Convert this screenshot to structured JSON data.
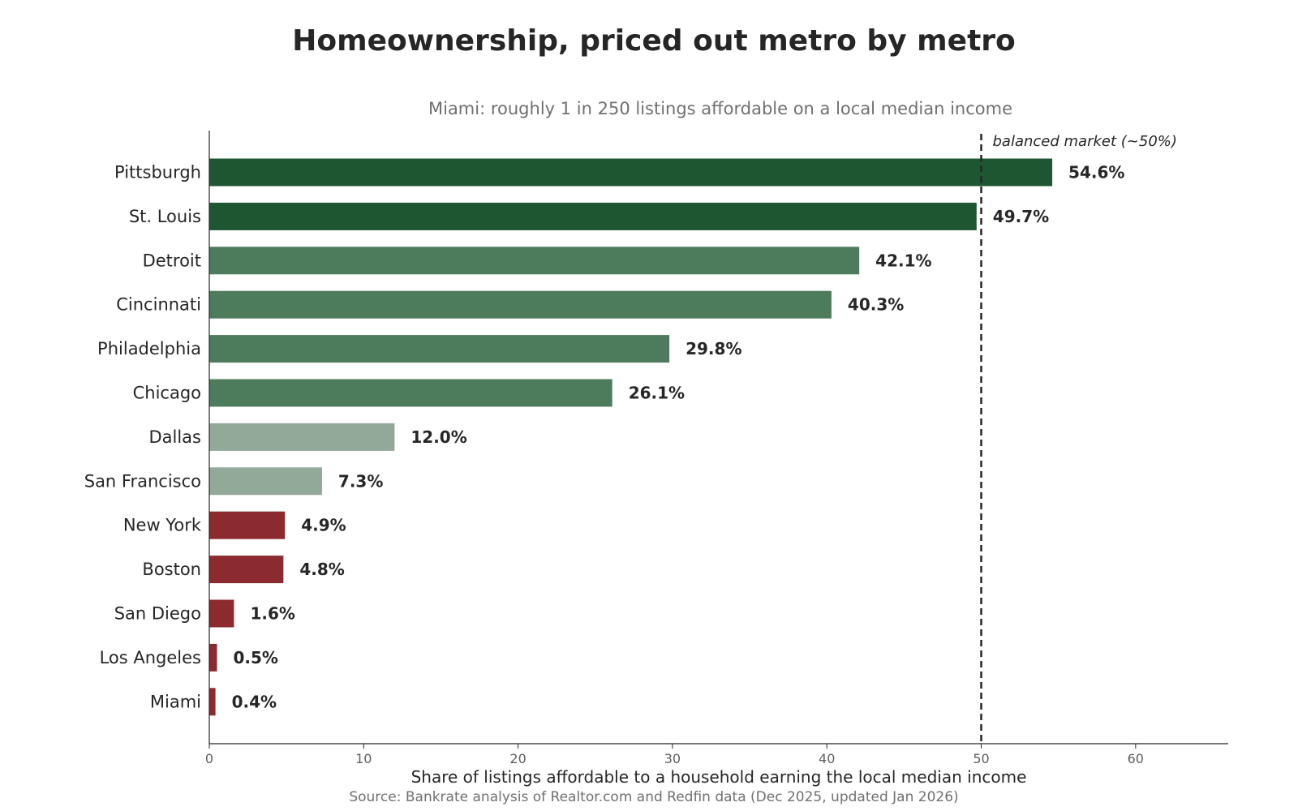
{
  "chart_data": {
    "type": "bar",
    "orientation": "horizontal",
    "title": "Homeownership, priced out metro by metro",
    "subtitle": "Miami: roughly 1 in 250 listings affordable on a local median income",
    "xlabel": "Share of listings affordable to a household earning the local median income",
    "ylabel": "",
    "source": "Source: Bankrate analysis of Realtor.com and Redfin data (Dec 2025, updated Jan 2026)",
    "xlim": [
      0,
      66
    ],
    "xticks": [
      0,
      10,
      20,
      30,
      40,
      50,
      60
    ],
    "grid": false,
    "categories": [
      "Pittsburgh",
      "St. Louis",
      "Detroit",
      "Cincinnati",
      "Philadelphia",
      "Chicago",
      "Dallas",
      "San Francisco",
      "New York",
      "Boston",
      "San Diego",
      "Los Angeles",
      "Miami"
    ],
    "values": [
      54.6,
      49.7,
      42.1,
      40.3,
      29.8,
      26.1,
      12.0,
      7.3,
      4.9,
      4.8,
      1.6,
      0.5,
      0.4
    ],
    "value_labels": [
      "54.6%",
      "49.7%",
      "42.1%",
      "40.3%",
      "29.8%",
      "26.1%",
      "12.0%",
      "7.3%",
      "4.9%",
      "4.8%",
      "1.6%",
      "0.5%",
      "0.4%"
    ],
    "bar_colors": [
      "#1f5632",
      "#1f5632",
      "#4d7c5c",
      "#4d7c5c",
      "#4d7c5c",
      "#4d7c5c",
      "#92a899",
      "#92a899",
      "#8b2b2f",
      "#8b2b2f",
      "#8b2b2f",
      "#8b2b2f",
      "#8b2b2f"
    ],
    "reference_line": {
      "value": 50,
      "label": "balanced market (~50%)",
      "style": "dashed"
    }
  }
}
